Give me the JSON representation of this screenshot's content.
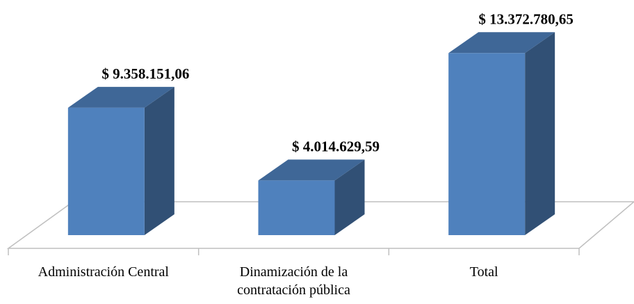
{
  "chart_data": {
    "type": "bar3d",
    "categories": [
      "Administración Central",
      "Dinamización de la contratación pública",
      "Total"
    ],
    "values": [
      9358151.06,
      4014629.59,
      13372780.65
    ],
    "value_labels": [
      "$ 9.358.151,06",
      "$ 4.014.629,59",
      "$ 13.372.780,65"
    ],
    "color": "#4f81bd",
    "ylim": [
      0,
      14000000
    ]
  }
}
